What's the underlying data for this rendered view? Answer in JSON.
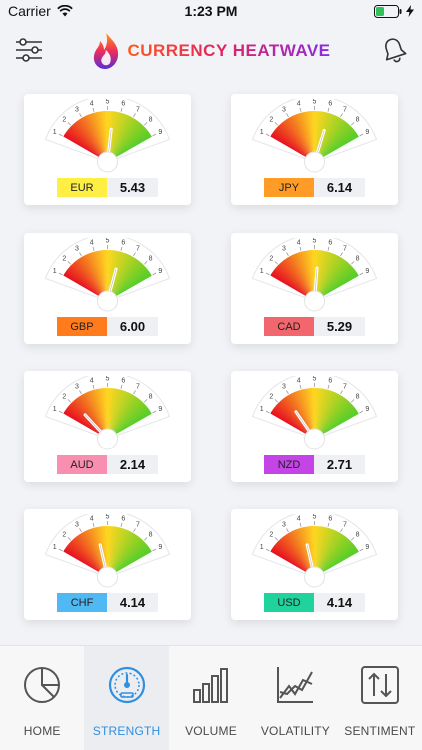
{
  "status": {
    "carrier": "Carrier",
    "time": "1:23 PM"
  },
  "header": {
    "title": "CURRENCY HEATWAVE",
    "menu_icon": "sliders-icon",
    "bell_icon": "bell-icon"
  },
  "colors": {
    "accent": "#2f8fe0"
  },
  "gauges": [
    {
      "code": "EUR",
      "value": "5.43",
      "level": 5.43,
      "color": "#ffee44"
    },
    {
      "code": "JPY",
      "value": "6.14",
      "level": 6.14,
      "color": "#ff9c27"
    },
    {
      "code": "GBP",
      "value": "6.00",
      "level": 6.0,
      "color": "#ff7b1c"
    },
    {
      "code": "CAD",
      "value": "5.29",
      "level": 5.29,
      "color": "#f2676d"
    },
    {
      "code": "AUD",
      "value": "2.14",
      "level": 2.14,
      "color": "#f98fb0"
    },
    {
      "code": "NZD",
      "value": "2.71",
      "level": 2.71,
      "color": "#c444e8"
    },
    {
      "code": "CHF",
      "value": "4.14",
      "level": 4.14,
      "color": "#50b8f2"
    },
    {
      "code": "USD",
      "value": "4.14",
      "level": 4.14,
      "color": "#20d29c"
    }
  ],
  "scale_ticks": [
    "1",
    "2",
    "3",
    "4",
    "5",
    "6",
    "7",
    "8",
    "9"
  ],
  "tabs": [
    {
      "label": "HOME",
      "icon": "pie-chart-icon",
      "active": false
    },
    {
      "label": "STRENGTH",
      "icon": "speedometer-icon",
      "active": true
    },
    {
      "label": "VOLUME",
      "icon": "bar-chart-icon",
      "active": false
    },
    {
      "label": "VOLATILITY",
      "icon": "line-chart-icon",
      "active": false
    },
    {
      "label": "SENTIMENT",
      "icon": "up-down-arrows-icon",
      "active": false
    }
  ]
}
